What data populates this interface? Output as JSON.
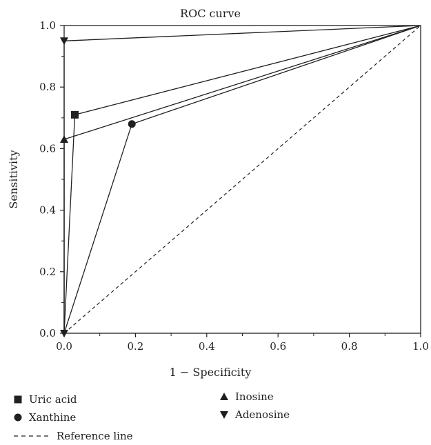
{
  "chart_data": {
    "type": "line",
    "title": "ROC curve",
    "xlabel": "1 − Specificity",
    "ylabel": "Sensitivity",
    "xlim": [
      0,
      1
    ],
    "ylim": [
      0,
      1
    ],
    "x_ticks": [
      "0.0",
      "0.2",
      "0.4",
      "0.6",
      "0.8",
      "1.0"
    ],
    "y_ticks": [
      "0.0",
      "0.2",
      "0.4",
      "0.6",
      "0.8",
      "1.0"
    ],
    "grid": false,
    "legend_position": "bottom",
    "series": [
      {
        "name": "Uric acid",
        "marker": "square",
        "points": [
          [
            0,
            0
          ],
          [
            0.03,
            0.71
          ],
          [
            1,
            1
          ]
        ]
      },
      {
        "name": "Xanthine",
        "marker": "circle",
        "points": [
          [
            0,
            0
          ],
          [
            0.19,
            0.68
          ],
          [
            1,
            1
          ]
        ]
      },
      {
        "name": "Inosine",
        "marker": "triangle-up",
        "points": [
          [
            0,
            0
          ],
          [
            0,
            0.63
          ],
          [
            1,
            1
          ]
        ]
      },
      {
        "name": "Adenosine",
        "marker": "triangle-down",
        "points": [
          [
            0,
            0
          ],
          [
            0,
            0.95
          ],
          [
            1,
            1
          ]
        ]
      }
    ],
    "reference_line": {
      "name": "Reference line",
      "points": [
        [
          0,
          0
        ],
        [
          1,
          1
        ]
      ],
      "style": "dashed"
    },
    "line_color": "#231f20"
  }
}
